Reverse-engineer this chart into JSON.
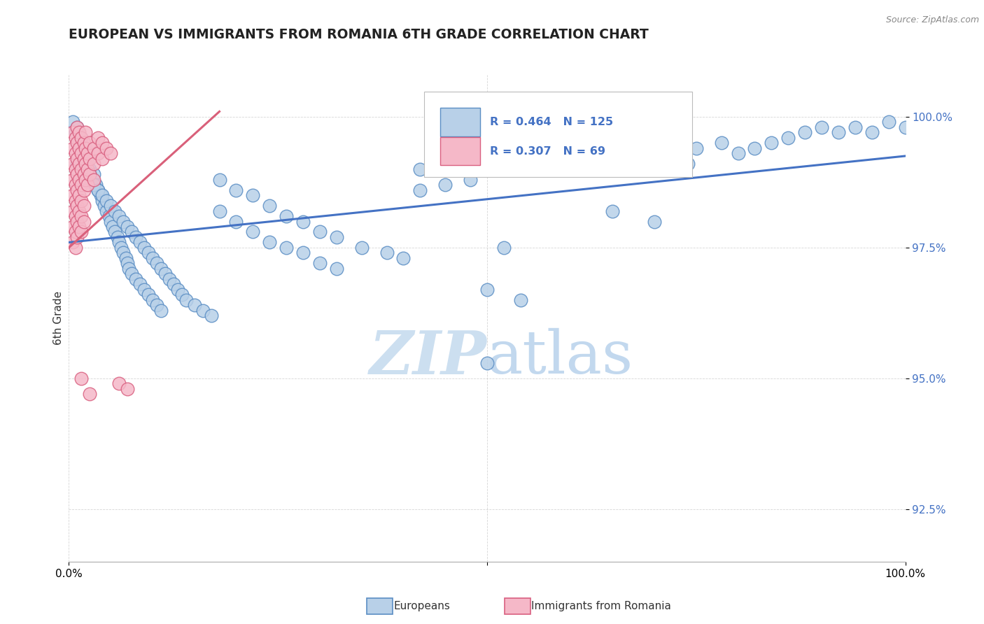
{
  "title": "EUROPEAN VS IMMIGRANTS FROM ROMANIA 6TH GRADE CORRELATION CHART",
  "source": "Source: ZipAtlas.com",
  "ylabel": "6th Grade",
  "legend_blue_label": "Europeans",
  "legend_pink_label": "Immigrants from Romania",
  "blue_R": 0.464,
  "blue_N": 125,
  "pink_R": 0.307,
  "pink_N": 69,
  "blue_color": "#b8d0e8",
  "blue_edge_color": "#5b8ec4",
  "pink_color": "#f5b8c8",
  "pink_edge_color": "#d96080",
  "blue_line_color": "#4472C4",
  "pink_line_color": "#d9607a",
  "watermark_color": "#ccdff0",
  "y_ticks": [
    92.5,
    95.0,
    97.5,
    100.0
  ],
  "y_tick_labels": [
    "92.5%",
    "95.0%",
    "97.5%",
    "100.0%"
  ],
  "xlim": [
    0.0,
    1.0
  ],
  "ylim": [
    91.5,
    100.8
  ],
  "blue_trendline_x": [
    0.0,
    1.0
  ],
  "blue_trendline_y": [
    97.6,
    99.25
  ],
  "pink_trendline_x": [
    0.0,
    0.18
  ],
  "pink_trendline_y": [
    97.5,
    100.1
  ],
  "blue_points": [
    [
      0.005,
      99.9
    ],
    [
      0.008,
      99.7
    ],
    [
      0.01,
      99.8
    ],
    [
      0.012,
      99.5
    ],
    [
      0.015,
      99.6
    ],
    [
      0.018,
      99.3
    ],
    [
      0.02,
      99.4
    ],
    [
      0.022,
      99.2
    ],
    [
      0.025,
      99.0
    ],
    [
      0.028,
      98.8
    ],
    [
      0.03,
      98.9
    ],
    [
      0.032,
      98.7
    ],
    [
      0.035,
      98.6
    ],
    [
      0.038,
      98.5
    ],
    [
      0.04,
      98.4
    ],
    [
      0.042,
      98.3
    ],
    [
      0.045,
      98.2
    ],
    [
      0.048,
      98.1
    ],
    [
      0.05,
      98.0
    ],
    [
      0.052,
      97.9
    ],
    [
      0.055,
      97.8
    ],
    [
      0.058,
      97.7
    ],
    [
      0.06,
      97.6
    ],
    [
      0.062,
      97.5
    ],
    [
      0.065,
      97.4
    ],
    [
      0.068,
      97.3
    ],
    [
      0.07,
      97.2
    ],
    [
      0.072,
      97.1
    ],
    [
      0.075,
      97.0
    ],
    [
      0.08,
      96.9
    ],
    [
      0.085,
      96.8
    ],
    [
      0.09,
      96.7
    ],
    [
      0.095,
      96.6
    ],
    [
      0.1,
      96.5
    ],
    [
      0.105,
      96.4
    ],
    [
      0.11,
      96.3
    ],
    [
      0.01,
      99.1
    ],
    [
      0.015,
      99.2
    ],
    [
      0.02,
      99.0
    ],
    [
      0.025,
      98.9
    ],
    [
      0.03,
      98.7
    ],
    [
      0.035,
      98.6
    ],
    [
      0.04,
      98.5
    ],
    [
      0.045,
      98.4
    ],
    [
      0.05,
      98.3
    ],
    [
      0.055,
      98.2
    ],
    [
      0.06,
      98.1
    ],
    [
      0.065,
      98.0
    ],
    [
      0.07,
      97.9
    ],
    [
      0.075,
      97.8
    ],
    [
      0.08,
      97.7
    ],
    [
      0.085,
      97.6
    ],
    [
      0.09,
      97.5
    ],
    [
      0.095,
      97.4
    ],
    [
      0.1,
      97.3
    ],
    [
      0.105,
      97.2
    ],
    [
      0.11,
      97.1
    ],
    [
      0.115,
      97.0
    ],
    [
      0.12,
      96.9
    ],
    [
      0.125,
      96.8
    ],
    [
      0.13,
      96.7
    ],
    [
      0.135,
      96.6
    ],
    [
      0.14,
      96.5
    ],
    [
      0.15,
      96.4
    ],
    [
      0.16,
      96.3
    ],
    [
      0.17,
      96.2
    ],
    [
      0.18,
      98.2
    ],
    [
      0.2,
      98.0
    ],
    [
      0.22,
      97.8
    ],
    [
      0.24,
      97.6
    ],
    [
      0.26,
      97.5
    ],
    [
      0.28,
      97.4
    ],
    [
      0.3,
      97.2
    ],
    [
      0.32,
      97.1
    ],
    [
      0.18,
      98.8
    ],
    [
      0.2,
      98.6
    ],
    [
      0.22,
      98.5
    ],
    [
      0.24,
      98.3
    ],
    [
      0.26,
      98.1
    ],
    [
      0.28,
      98.0
    ],
    [
      0.3,
      97.8
    ],
    [
      0.32,
      97.7
    ],
    [
      0.35,
      97.5
    ],
    [
      0.38,
      97.4
    ],
    [
      0.4,
      97.3
    ],
    [
      0.42,
      99.0
    ],
    [
      0.45,
      99.1
    ],
    [
      0.48,
      99.2
    ],
    [
      0.5,
      99.1
    ],
    [
      0.42,
      98.6
    ],
    [
      0.45,
      98.7
    ],
    [
      0.48,
      98.8
    ],
    [
      0.5,
      96.7
    ],
    [
      0.52,
      97.5
    ],
    [
      0.6,
      99.0
    ],
    [
      0.62,
      99.1
    ],
    [
      0.64,
      99.2
    ],
    [
      0.66,
      99.0
    ],
    [
      0.7,
      99.3
    ],
    [
      0.72,
      99.2
    ],
    [
      0.74,
      99.1
    ],
    [
      0.75,
      99.4
    ],
    [
      0.78,
      99.5
    ],
    [
      0.8,
      99.3
    ],
    [
      0.82,
      99.4
    ],
    [
      0.84,
      99.5
    ],
    [
      0.86,
      99.6
    ],
    [
      0.88,
      99.7
    ],
    [
      0.9,
      99.8
    ],
    [
      0.92,
      99.7
    ],
    [
      0.94,
      99.8
    ],
    [
      0.96,
      99.7
    ],
    [
      0.98,
      99.9
    ],
    [
      1.0,
      99.8
    ],
    [
      0.5,
      95.3
    ],
    [
      0.54,
      96.5
    ],
    [
      0.65,
      98.2
    ],
    [
      0.7,
      98.0
    ]
  ],
  "pink_points": [
    [
      0.005,
      99.7
    ],
    [
      0.005,
      99.4
    ],
    [
      0.005,
      99.1
    ],
    [
      0.005,
      98.8
    ],
    [
      0.005,
      98.5
    ],
    [
      0.005,
      98.2
    ],
    [
      0.005,
      97.9
    ],
    [
      0.005,
      97.6
    ],
    [
      0.008,
      99.6
    ],
    [
      0.008,
      99.3
    ],
    [
      0.008,
      99.0
    ],
    [
      0.008,
      98.7
    ],
    [
      0.008,
      98.4
    ],
    [
      0.008,
      98.1
    ],
    [
      0.008,
      97.8
    ],
    [
      0.008,
      97.5
    ],
    [
      0.01,
      99.8
    ],
    [
      0.01,
      99.5
    ],
    [
      0.01,
      99.2
    ],
    [
      0.01,
      98.9
    ],
    [
      0.01,
      98.6
    ],
    [
      0.01,
      98.3
    ],
    [
      0.01,
      98.0
    ],
    [
      0.01,
      97.7
    ],
    [
      0.012,
      99.7
    ],
    [
      0.012,
      99.4
    ],
    [
      0.012,
      99.1
    ],
    [
      0.012,
      98.8
    ],
    [
      0.012,
      98.5
    ],
    [
      0.012,
      98.2
    ],
    [
      0.012,
      97.9
    ],
    [
      0.015,
      99.6
    ],
    [
      0.015,
      99.3
    ],
    [
      0.015,
      99.0
    ],
    [
      0.015,
      98.7
    ],
    [
      0.015,
      98.4
    ],
    [
      0.015,
      98.1
    ],
    [
      0.015,
      97.8
    ],
    [
      0.018,
      99.5
    ],
    [
      0.018,
      99.2
    ],
    [
      0.018,
      98.9
    ],
    [
      0.018,
      98.6
    ],
    [
      0.018,
      98.3
    ],
    [
      0.018,
      98.0
    ],
    [
      0.02,
      99.7
    ],
    [
      0.02,
      99.4
    ],
    [
      0.02,
      99.1
    ],
    [
      0.02,
      98.8
    ],
    [
      0.022,
      99.3
    ],
    [
      0.022,
      99.0
    ],
    [
      0.022,
      98.7
    ],
    [
      0.025,
      99.5
    ],
    [
      0.025,
      99.2
    ],
    [
      0.025,
      98.9
    ],
    [
      0.03,
      99.4
    ],
    [
      0.03,
      99.1
    ],
    [
      0.03,
      98.8
    ],
    [
      0.035,
      99.6
    ],
    [
      0.035,
      99.3
    ],
    [
      0.04,
      99.5
    ],
    [
      0.04,
      99.2
    ],
    [
      0.045,
      99.4
    ],
    [
      0.05,
      99.3
    ],
    [
      0.015,
      95.0
    ],
    [
      0.025,
      94.7
    ],
    [
      0.06,
      94.9
    ],
    [
      0.07,
      94.8
    ]
  ]
}
